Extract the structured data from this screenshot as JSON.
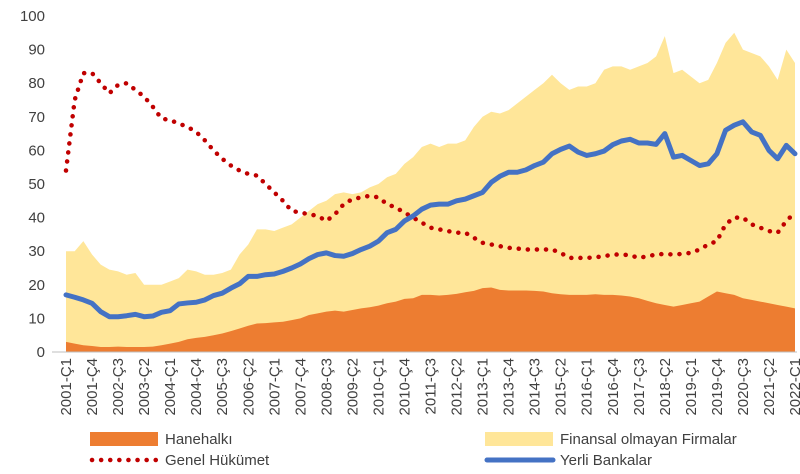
{
  "chart_data": {
    "type": "area",
    "categories": [
      "2001-Ç1",
      null,
      null,
      "2001-Ç4",
      null,
      null,
      "2002-Ç3",
      null,
      null,
      "2003-Ç2",
      null,
      null,
      "2004-Ç1",
      null,
      null,
      "2004-Ç4",
      null,
      null,
      "2005-Ç3",
      null,
      null,
      "2006-Ç2",
      null,
      null,
      "2007-Ç1",
      null,
      null,
      "2007-Ç4",
      null,
      null,
      "2008-Ç3",
      null,
      null,
      "2009-Ç2",
      null,
      null,
      "2010-Ç1",
      null,
      null,
      "2010-Ç4",
      null,
      null,
      "2011-Ç3",
      null,
      null,
      "2012-Ç2",
      null,
      null,
      "2013-Ç1",
      null,
      null,
      "2013-Ç4",
      null,
      null,
      "2014-Ç3",
      null,
      null,
      "2015-Ç2",
      null,
      null,
      "2016-Ç1",
      null,
      null,
      "2016-Ç4",
      null,
      null,
      "2017-Ç3",
      null,
      null,
      "2018-Ç2",
      null,
      null,
      "2019-Ç1",
      null,
      null,
      "2019-Ç4",
      null,
      null,
      "2020-Ç3",
      null,
      null,
      "2021-Ç2",
      null,
      null,
      "2022-Ç1"
    ],
    "series": [
      {
        "name": "Hanehalkı",
        "kind": "area",
        "color": "#ed7d31",
        "values": [
          3,
          2.5,
          2,
          1.8,
          1.5,
          1.5,
          1.6,
          1.5,
          1.5,
          1.5,
          1.6,
          2,
          2.5,
          3,
          3.8,
          4.2,
          4.5,
          5,
          5.5,
          6.2,
          7,
          7.8,
          8.5,
          8.6,
          8.8,
          9,
          9.5,
          10,
          11,
          11.5,
          12,
          12.3,
          12,
          12.5,
          13,
          13.3,
          13.8,
          14.5,
          15,
          15.8,
          16,
          17,
          17,
          16.8,
          17,
          17.3,
          17.8,
          18.2,
          19,
          19.2,
          18.5,
          18.3,
          18.3,
          18.3,
          18.2,
          18,
          17.5,
          17.2,
          17,
          17,
          17,
          17.2,
          17,
          17,
          16.8,
          16.5,
          16,
          15.2,
          14.5,
          14,
          13.5,
          14,
          14.5,
          15,
          16.5,
          18,
          17.5,
          17,
          16,
          15.5,
          15,
          14.5,
          14,
          13.5,
          13
        ]
      },
      {
        "name": "Finansal olmayan Firmalar",
        "kind": "area",
        "color": "#ffe699",
        "values": [
          30,
          30,
          33,
          29,
          26,
          24.5,
          24,
          23,
          23.5,
          20,
          20,
          20,
          21,
          22,
          24.5,
          24,
          23,
          23,
          23.5,
          24.5,
          29,
          32,
          36.5,
          36.5,
          36,
          37,
          38,
          40,
          42,
          44,
          45,
          47,
          47.5,
          47,
          47.5,
          49,
          50,
          52,
          53,
          56,
          58,
          61,
          62,
          61,
          62,
          62,
          63,
          67,
          70,
          71.5,
          71,
          72,
          74,
          76,
          78,
          80,
          82.5,
          80,
          78,
          79,
          79,
          80,
          84,
          85,
          85,
          84,
          85,
          86,
          88,
          94,
          83,
          84,
          82,
          80,
          81,
          86,
          92,
          95,
          90,
          89,
          88,
          85,
          81,
          90,
          86
        ]
      },
      {
        "name": "Genel Hükümet",
        "kind": "line",
        "line_style": "dotted",
        "color": "#c00000",
        "values": [
          54,
          75,
          83,
          83,
          80,
          77,
          79.5,
          80,
          78,
          76,
          73,
          69.5,
          69,
          68,
          67,
          65.5,
          63,
          60,
          57.5,
          55.5,
          54,
          53,
          52.5,
          50,
          47.5,
          45,
          42,
          41.5,
          41,
          40.5,
          39,
          41,
          44,
          45.5,
          46,
          46.5,
          46,
          44,
          43,
          41.5,
          40,
          38.5,
          37,
          36.5,
          36,
          35.5,
          35.5,
          34,
          32.5,
          32,
          31.5,
          31,
          30.8,
          30.5,
          30.5,
          30.5,
          30.5,
          29.5,
          28,
          28,
          28,
          28.2,
          28.5,
          29,
          29,
          28.8,
          28,
          28.5,
          29,
          29.2,
          29,
          29.2,
          29.5,
          30.5,
          32,
          33,
          38,
          40,
          40,
          38,
          37,
          36,
          35.5,
          39,
          41.5
        ]
      },
      {
        "name": "Yerli Bankalar",
        "kind": "line",
        "line_style": "solid",
        "color": "#4472c4",
        "values": [
          17,
          16.3,
          15.5,
          14.5,
          12,
          10.5,
          10.5,
          10.8,
          11.2,
          10.5,
          10.7,
          11.8,
          12.3,
          14.3,
          14.6,
          14.8,
          15.5,
          16.8,
          17.5,
          19,
          20.3,
          22.5,
          22.5,
          23,
          23.2,
          24,
          25,
          26.2,
          27.8,
          29,
          29.5,
          28.7,
          28.5,
          29.3,
          30.5,
          31.5,
          33,
          35.5,
          36.5,
          39,
          40.5,
          42.5,
          43.7,
          44,
          44,
          45,
          45.5,
          46.5,
          47.5,
          50.5,
          52.3,
          53.5,
          53.5,
          54.2,
          55.5,
          56.5,
          59,
          60.3,
          61.3,
          59.5,
          58.5,
          59,
          59.8,
          61.7,
          62.8,
          63.3,
          62.2,
          62.2,
          61.8,
          65,
          58,
          58.5,
          57,
          55.5,
          56,
          59,
          66,
          67.5,
          68.5,
          65.5,
          64.5,
          60,
          57.5,
          61.5,
          59
        ]
      }
    ],
    "ylim": [
      0,
      100
    ],
    "yticks": [
      0,
      10,
      20,
      30,
      40,
      50,
      60,
      70,
      80,
      90,
      100
    ],
    "grid": false,
    "legend": "bottom"
  }
}
